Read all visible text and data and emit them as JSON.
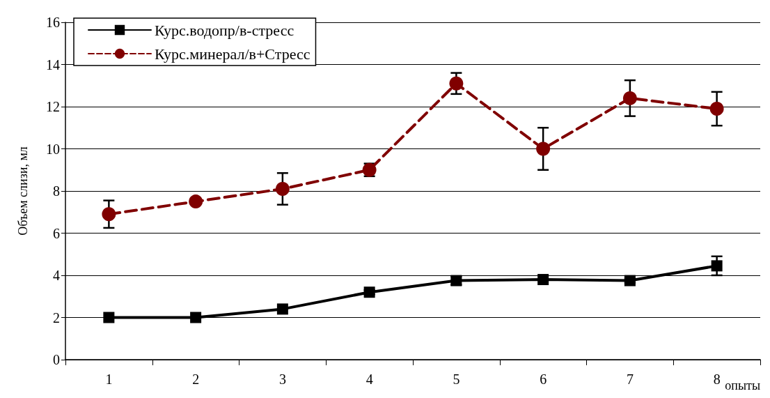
{
  "chart_data": {
    "type": "line",
    "ylabel": "Объем слизи, мл",
    "xlabel": "опыты",
    "categories": [
      "1",
      "2",
      "3",
      "4",
      "5",
      "6",
      "7",
      "8"
    ],
    "ylim": [
      0,
      16
    ],
    "yticks": [
      0,
      2,
      4,
      6,
      8,
      10,
      12,
      14,
      16
    ],
    "grid": "y",
    "legend": "top left",
    "series": [
      {
        "name": "Курс.водопр/в-стресс",
        "color": "#000000",
        "marker": "square",
        "line_style": "solid",
        "values": [
          2,
          2,
          2.4,
          3.2,
          3.75,
          3.8,
          3.75,
          4.45
        ],
        "errors": [
          null,
          null,
          null,
          0.1,
          0.2,
          null,
          0.1,
          0.45
        ]
      },
      {
        "name": "Курс.минерал/в+Стресс",
        "color": "#800000",
        "marker": "circle",
        "line_style": "dashed",
        "values": [
          6.9,
          7.5,
          8.1,
          9.0,
          13.1,
          10.0,
          12.4,
          11.9
        ],
        "errors": [
          0.65,
          null,
          0.75,
          0.3,
          0.5,
          1.0,
          0.85,
          0.8
        ]
      }
    ]
  }
}
